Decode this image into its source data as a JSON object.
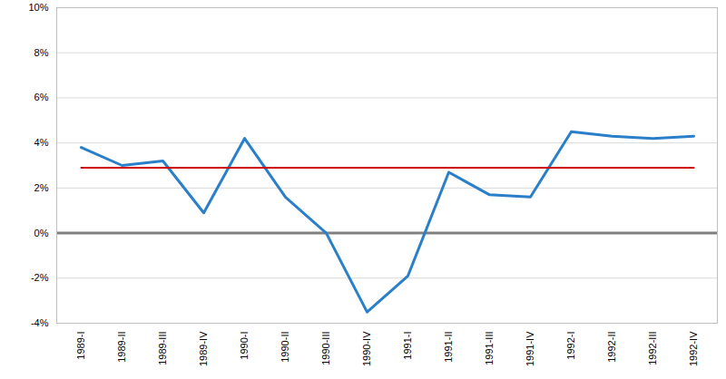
{
  "chart_data": {
    "type": "line",
    "categories": [
      "1989-I",
      "1989-II",
      "1989-III",
      "1989-IV",
      "1990-I",
      "1990-II",
      "1990-III",
      "1990-IV",
      "1991-I",
      "1991-II",
      "1991-III",
      "1991-IV",
      "1992-I",
      "1992-II",
      "1992-III",
      "1992-IV"
    ],
    "series": [
      {
        "color": "#2a7fc9",
        "values": [
          3.8,
          3.0,
          3.2,
          0.9,
          4.2,
          1.6,
          0.0,
          -3.5,
          -1.9,
          2.7,
          1.7,
          1.6,
          4.5,
          4.3,
          4.2,
          4.3
        ]
      },
      {
        "color": "#cc0000",
        "values": [
          2.9,
          2.9,
          2.9,
          2.9,
          2.9,
          2.9,
          2.9,
          2.9,
          2.9,
          2.9,
          2.9,
          2.9,
          2.9,
          2.9,
          2.9,
          2.9
        ]
      }
    ],
    "ylim": [
      -4,
      10
    ],
    "yticks": [
      {
        "value": -4,
        "label": "-4%"
      },
      {
        "value": -2,
        "label": "-2%"
      },
      {
        "value": 0,
        "label": "0%"
      },
      {
        "value": 2,
        "label": "2%"
      },
      {
        "value": 4,
        "label": "4%"
      },
      {
        "value": 6,
        "label": "6%"
      },
      {
        "value": 8,
        "label": "8%"
      },
      {
        "value": 10,
        "label": "10%"
      }
    ],
    "grid": true
  }
}
